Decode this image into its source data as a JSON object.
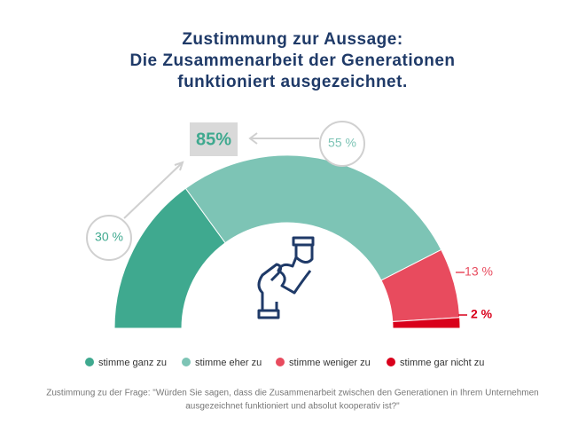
{
  "chart_data": {
    "type": "half-donut",
    "title": [
      "Zustimmung zur Aussage:",
      "Die Zusammenarbeit der Generationen",
      "funktioniert ausgezeichnet."
    ],
    "categories": [
      "stimme ganz zu",
      "stimme eher zu",
      "stimme weniger zu",
      "stimme gar nicht zu"
    ],
    "values": [
      30,
      55,
      13,
      2
    ],
    "value_labels": [
      "30 %",
      "55 %",
      "13 %",
      "2 %"
    ],
    "colors": [
      "#3fa98f",
      "#7dc4b5",
      "#e84b5e",
      "#d9001b"
    ],
    "highlight": {
      "value": 85,
      "label": "85%"
    },
    "footnote": [
      "Zustimmung zu der Frage: \"Würden Sie sagen, dass die Zusammenarbeit zwischen den Generationen in Ihrem Unternehmen",
      "ausgezeichnet funktioniert und absolut kooperativ ist?\""
    ]
  }
}
